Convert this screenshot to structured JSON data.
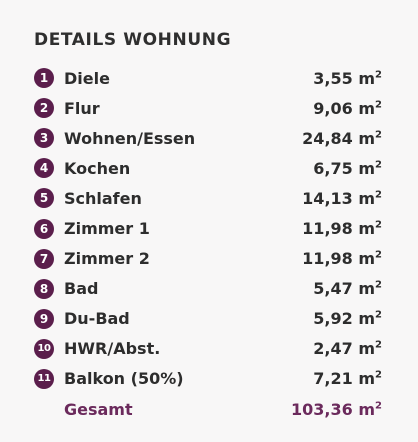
{
  "heading": "DETAILS WOHNUNG",
  "unit_base": "m",
  "unit_exp": "2",
  "rooms": [
    {
      "num": "1",
      "name": "Diele",
      "area": "3,55"
    },
    {
      "num": "2",
      "name": "Flur",
      "area": "9,06"
    },
    {
      "num": "3",
      "name": "Wohnen/Essen",
      "area": "24,84"
    },
    {
      "num": "4",
      "name": "Kochen",
      "area": "6,75"
    },
    {
      "num": "5",
      "name": "Schlafen",
      "area": "14,13"
    },
    {
      "num": "6",
      "name": "Zimmer 1",
      "area": "11,98"
    },
    {
      "num": "7",
      "name": "Zimmer 2",
      "area": "11,98"
    },
    {
      "num": "8",
      "name": "Bad",
      "area": "5,47"
    },
    {
      "num": "9",
      "name": "Du-Bad",
      "area": "5,92"
    },
    {
      "num": "10",
      "name": "HWR/Abst.",
      "area": "2,47"
    },
    {
      "num": "11",
      "name": "Balkon (50%)",
      "area": "7,21"
    }
  ],
  "total": {
    "name": "Gesamt",
    "area": "103,36"
  },
  "colors": {
    "badge": "#5b1e4c",
    "total_text": "#6b2a5c",
    "background": "#f8f7f7"
  }
}
